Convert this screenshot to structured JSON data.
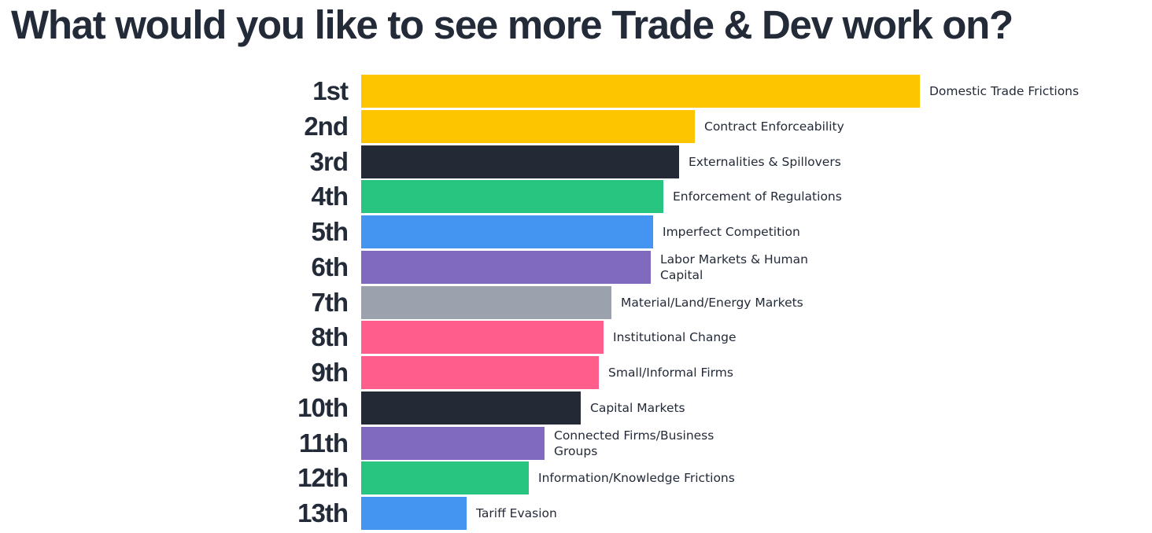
{
  "chart_data": {
    "type": "bar",
    "orientation": "horizontal",
    "title": "What would you like to see more Trade & Dev work on?",
    "categories": [
      "1st",
      "2nd",
      "3rd",
      "4th",
      "5th",
      "6th",
      "7th",
      "8th",
      "9th",
      "10th",
      "11th",
      "12th",
      "13th"
    ],
    "labels": [
      "Domestic Trade Frictions",
      "Contract Enforceability",
      "Externalities & Spillovers",
      "Enforcement of Regulations",
      "Imperfect Competition",
      "Labor Markets & Human Capital",
      "Material/Land/Energy Markets",
      "Institutional Change",
      "Small/Informal Firms",
      "Capital Markets",
      "Connected Firms/Business Groups",
      "Information/Knowledge Frictions",
      "Tariff Evasion"
    ],
    "values": [
      710,
      424,
      404,
      384,
      371,
      368,
      318,
      308,
      302,
      279,
      233,
      213,
      134
    ],
    "colors": [
      "#fdc500",
      "#fdc500",
      "#242936",
      "#28c580",
      "#4494f1",
      "#806ac0",
      "#9ba1ad",
      "#ff5e8c",
      "#ff5e8c",
      "#242936",
      "#806ac0",
      "#28c580",
      "#4494f1"
    ],
    "xlim": [
      0,
      710
    ]
  }
}
